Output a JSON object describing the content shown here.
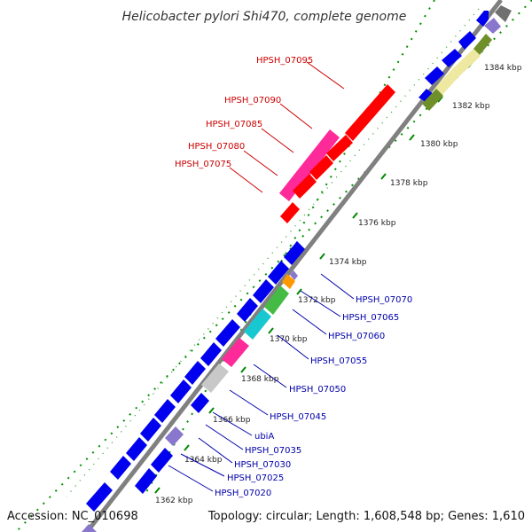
{
  "title": "Helicobacter pylori Shi470, complete genome",
  "footer": {
    "accession": "Accession: NC_010698",
    "topology": "Topology: circular; Length: 1,608,548 bp; Genes: 1,610"
  },
  "ticks": [
    "1362 kbp",
    "1364 kbp",
    "1366 kbp",
    "1368 kbp",
    "1370 kbp",
    "1372 kbp",
    "1374 kbp",
    "1376 kbp",
    "1378 kbp",
    "1380 kbp",
    "1382 kbp",
    "1384 kbp"
  ],
  "genes_red": [
    "HPSH_07095",
    "HPSH_07090",
    "HPSH_07085",
    "HPSH_07080",
    "HPSH_07075"
  ],
  "genes_blue": [
    "HPSH_07070",
    "HPSH_07065",
    "HPSH_07060",
    "HPSH_07055",
    "HPSH_07050",
    "HPSH_07045",
    "ubiA",
    "HPSH_07035",
    "HPSH_07030",
    "HPSH_07025",
    "HPSH_07020"
  ],
  "colors": {
    "backbone": "#808080",
    "blue_gene": "#0000ee",
    "red_gene": "#ff0000",
    "magenta_gene": "#ff2a9a",
    "cyan_gene": "#18c8d0",
    "green_gene": "#44bb44",
    "orange_gene": "#ff9900",
    "grey_gene": "#c8c8c8",
    "purple_gene": "#8877cc",
    "olive_gene": "#6f8f2a",
    "khaki_gene": "#eee8a0",
    "tick_dots": "#008800"
  }
}
